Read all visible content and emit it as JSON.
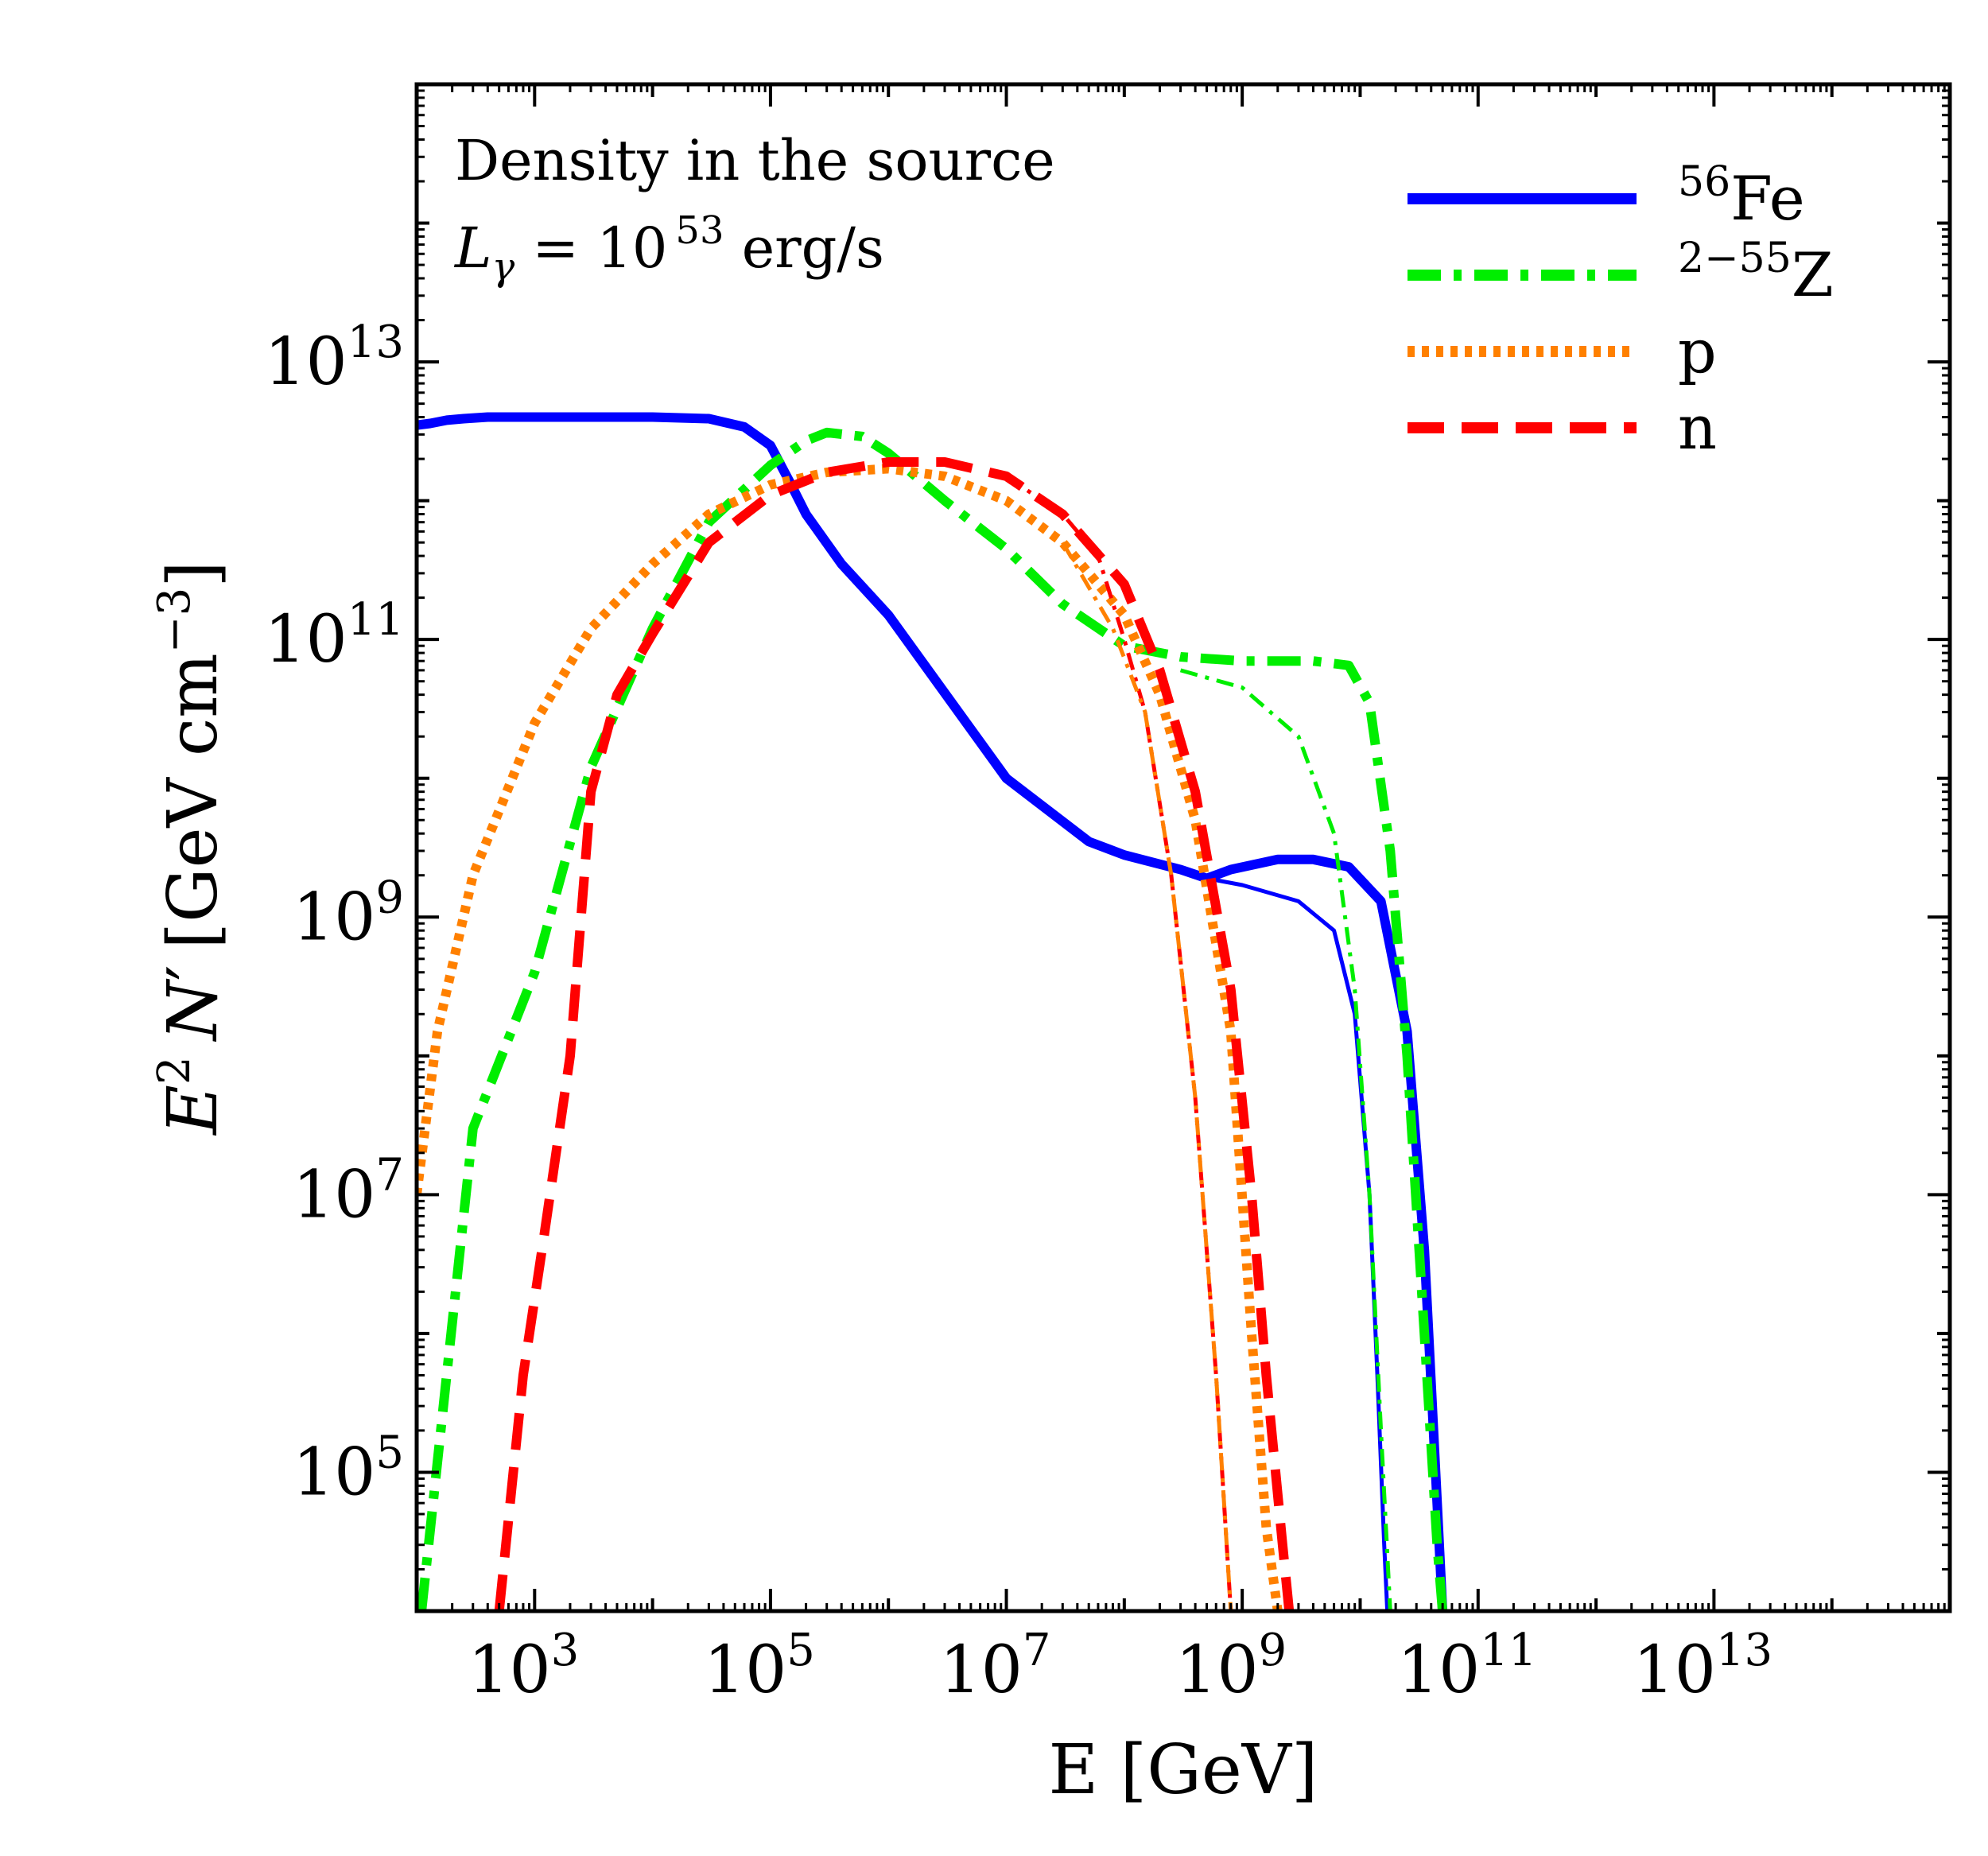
{
  "chart_data": {
    "type": "line",
    "xscale": "log",
    "yscale": "log",
    "xlim": [
      100,
      1000000000000000
    ],
    "ylim": [
      10000,
      1000000000000000
    ],
    "xlabel": "E [GeV]",
    "ylabel_parts": {
      "e": "E",
      "sup2": "2",
      "n": "N",
      "prime": "′",
      "unit_open": "[GeV cm",
      "unit_sup": "−3",
      "unit_close": "]"
    },
    "x_ticks": [
      {
        "value": 1000,
        "base": "10",
        "exp": "3"
      },
      {
        "value": 100000,
        "base": "10",
        "exp": "5"
      },
      {
        "value": 10000000,
        "base": "10",
        "exp": "7"
      },
      {
        "value": 1000000000,
        "base": "10",
        "exp": "9"
      },
      {
        "value": 100000000000,
        "base": "10",
        "exp": "11"
      },
      {
        "value": 10000000000000,
        "base": "10",
        "exp": "13"
      }
    ],
    "y_ticks": [
      {
        "value": 100000,
        "base": "10",
        "exp": "5"
      },
      {
        "value": 10000000,
        "base": "10",
        "exp": "7"
      },
      {
        "value": 1000000000,
        "base": "10",
        "exp": "9"
      },
      {
        "value": 100000000000,
        "base": "10",
        "exp": "11"
      },
      {
        "value": 10000000000000,
        "base": "10",
        "exp": "13"
      }
    ],
    "annotations": {
      "line1": "Density in the source",
      "line2_sym": "L",
      "line2_sub": "γ",
      "line2_mid": " = 10",
      "line2_exp": "53",
      "line2_unit": " erg/s"
    },
    "legend": [
      {
        "sup": "56",
        "label": "Fe",
        "series": "fe_source"
      },
      {
        "sup": "2−55",
        "label": "Z",
        "series": "z_source"
      },
      {
        "sup": "",
        "label": "p",
        "series": "p_source"
      },
      {
        "sup": "",
        "label": "n",
        "series": "n_source"
      }
    ],
    "series": [
      {
        "name": "fe_source",
        "display": "56Fe",
        "color": "#0000ff",
        "style": "solid",
        "thick": true,
        "x": [
          100,
          130,
          180,
          250,
          400,
          1000,
          10000,
          30000,
          60000,
          100000,
          150000,
          200000,
          400000,
          1000000,
          10000000,
          50000000,
          100000000,
          300000000,
          500000000,
          800000000,
          2000000000,
          4000000000,
          8000000000,
          15000000000,
          25000000000,
          35000000000,
          45000000000,
          50000000000
        ],
        "y": [
          3500000000000,
          3600000000000,
          3800000000000,
          3900000000000,
          4000000000000,
          4000000000000,
          4000000000000,
          3900000000000,
          3400000000000,
          2500000000000,
          1300000000000,
          800000000000,
          350000000000,
          150000000000,
          10000000000,
          3500000000,
          2800000000,
          2200000000,
          1900000000,
          2200000000,
          2600000000,
          2600000000,
          2300000000,
          1300000000,
          150000000,
          4000000,
          60000,
          10000
        ]
      },
      {
        "name": "fe_observer",
        "display": "56Fe",
        "color": "#0000ff",
        "style": "solid",
        "thick": false,
        "x": [
          500000000,
          1000000000,
          3000000000,
          6000000000,
          9000000000,
          12000000000,
          14000000000,
          16000000000,
          17000000000
        ],
        "y": [
          1900000000,
          1700000000,
          1300000000,
          800000000,
          200000000,
          10000000,
          500000,
          30000,
          10000
        ]
      },
      {
        "name": "z_source",
        "display": "2-55Z",
        "color": "#00ee00",
        "style": "dashdot",
        "thick": true,
        "x": [
          110,
          300,
          1000,
          3000,
          10000,
          30000,
          100000,
          200000,
          300000,
          600000,
          1000000,
          3000000,
          10000000,
          30000000,
          100000000,
          300000000,
          1000000000,
          4000000000,
          8000000000,
          12000000000,
          18000000000,
          25000000000,
          35000000000,
          45000000000,
          50000000000
        ],
        "y": [
          10000,
          30000000,
          400000000,
          12000000000,
          120000000000,
          700000000000,
          1800000000000,
          2700000000000,
          3100000000000,
          2900000000000,
          2200000000000,
          1000000000000,
          450000000000,
          180000000000,
          90000000000,
          75000000000,
          70000000000,
          70000000000,
          65000000000,
          35000000000,
          3000000000,
          100000000,
          1000000,
          30000,
          10000
        ]
      },
      {
        "name": "z_observer",
        "display": "2-55Z",
        "color": "#00ee00",
        "style": "dashdot",
        "thick": false,
        "x": [
          300000000,
          1000000000,
          3000000000,
          6000000000,
          9000000000,
          12000000000,
          15000000000,
          18000000000
        ],
        "y": [
          60000000000,
          45000000000,
          20000000000,
          4000000000,
          300000000,
          10000000,
          200000,
          10000
        ]
      },
      {
        "name": "p_source",
        "display": "p",
        "color": "#ff8000",
        "style": "dotted",
        "thick": true,
        "x": [
          100,
          150,
          300,
          1000,
          3000,
          10000,
          30000,
          100000,
          300000,
          1000000,
          3000000,
          10000000,
          30000000,
          100000000,
          200000000,
          400000000,
          800000000,
          1200000000,
          1600000000,
          2000000000
        ],
        "y": [
          10000000,
          150000000,
          2000000000,
          25000000000,
          120000000000,
          350000000000,
          800000000000,
          1300000000000,
          1600000000000,
          1700000000000,
          1500000000000,
          1000000000000,
          500000000000,
          150000000000,
          40000000000,
          5000000000,
          150000000,
          1000000,
          40000,
          10000
        ]
      },
      {
        "name": "n_source",
        "display": "n",
        "color": "#ff0000",
        "style": "dashed",
        "thick": true,
        "x": [
          500,
          800,
          1200,
          2000,
          3000,
          5000,
          10000,
          30000,
          100000,
          300000,
          1000000,
          3000000,
          10000000,
          30000000,
          100000000,
          200000000,
          400000000,
          800000000,
          1200000000,
          1600000000,
          2200000000,
          2500000000
        ],
        "y": [
          10000,
          500000,
          5000000,
          100000000,
          8000000000,
          40000000000,
          110000000000,
          500000000000,
          1100000000000,
          1600000000000,
          1900000000000,
          1900000000000,
          1500000000000,
          800000000000,
          250000000000,
          60000000000,
          8000000000,
          300000000,
          10000000,
          500000,
          30000,
          10000
        ]
      },
      {
        "name": "n_observer",
        "display": "n",
        "color": "#ff0000",
        "style": "dashdot",
        "thick": false,
        "x": [
          10000000,
          30000000,
          60000000,
          100000000,
          150000000,
          250000000,
          400000000,
          600000000,
          800000000
        ],
        "y": [
          1500000000000,
          800000000000,
          400000000000,
          100000000000,
          30000000000,
          2000000000,
          50000000,
          500000,
          10000
        ]
      },
      {
        "name": "p_observer",
        "display": "p",
        "color": "#ff8000",
        "style": "dashdot",
        "thick": false,
        "x": [
          30000000,
          80000000,
          150000000,
          250000000,
          400000000,
          600000000,
          800000000
        ],
        "y": [
          500000000000,
          120000000000,
          30000000000,
          2000000000,
          50000000,
          500000,
          10000
        ]
      }
    ]
  }
}
